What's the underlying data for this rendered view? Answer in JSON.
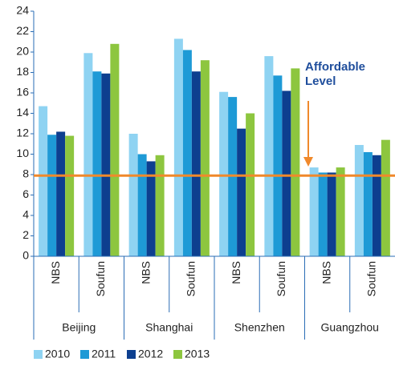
{
  "chart_data": {
    "type": "bar",
    "categories": [
      "NBS",
      "Soufun",
      "NBS",
      "Soufun",
      "NBS",
      "Soufun",
      "NBS",
      "Soufun"
    ],
    "groups": [
      "Beijing",
      "Shanghai",
      "Shenzhen",
      "Guangzhou"
    ],
    "series": [
      {
        "name": "2010",
        "color": "#8fd3f2",
        "values": [
          14.7,
          19.9,
          12.0,
          21.3,
          16.1,
          19.6,
          8.7,
          10.9
        ]
      },
      {
        "name": "2011",
        "color": "#1e9ad6",
        "values": [
          11.9,
          18.1,
          10.0,
          20.2,
          15.6,
          17.7,
          8.2,
          10.2
        ]
      },
      {
        "name": "2012",
        "color": "#0d3f8f",
        "values": [
          12.2,
          17.9,
          9.3,
          18.1,
          12.5,
          16.2,
          8.2,
          9.9
        ]
      },
      {
        "name": "2013",
        "color": "#8dc63f",
        "values": [
          11.8,
          20.8,
          9.9,
          19.2,
          14.0,
          18.4,
          8.7,
          11.4
        ]
      }
    ],
    "ylim": [
      0,
      24
    ],
    "yticks": [
      0,
      2,
      4,
      6,
      8,
      10,
      12,
      14,
      16,
      18,
      20,
      22,
      24
    ],
    "reference_line": {
      "value": 7.9,
      "color": "#f0892b"
    },
    "annotation": [
      "Affordable",
      "Level"
    ],
    "legend": "bottom-left"
  }
}
